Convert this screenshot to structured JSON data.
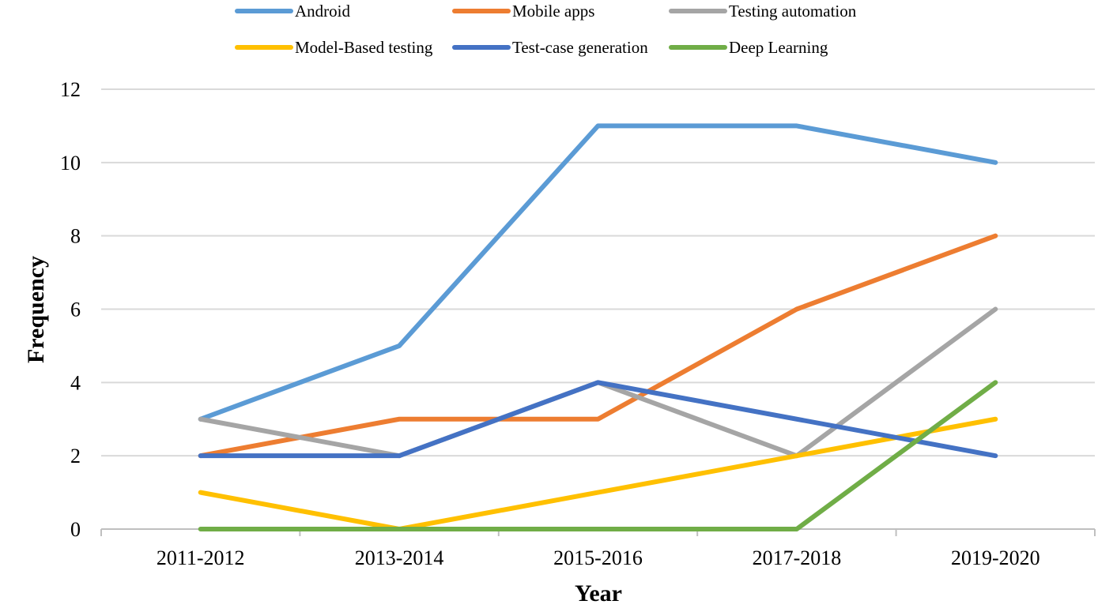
{
  "chart_data": {
    "type": "line",
    "title": "",
    "xlabel": "Year",
    "ylabel": "Frequency",
    "categories": [
      "2011-2012",
      "2013-2014",
      "2015-2016",
      "2017-2018",
      "2019-2020"
    ],
    "ylim": [
      0,
      12
    ],
    "yticks": [
      0,
      2,
      4,
      6,
      8,
      10,
      12
    ],
    "grid": true,
    "legend_position": "top",
    "series": [
      {
        "name": "Android",
        "color": "#5B9BD5",
        "values": [
          3,
          5,
          11,
          11,
          10
        ]
      },
      {
        "name": "Mobile apps",
        "color": "#ED7D31",
        "values": [
          2,
          3,
          3,
          6,
          8
        ]
      },
      {
        "name": "Testing automation",
        "color": "#A5A5A5",
        "values": [
          3,
          2,
          4,
          2,
          6
        ]
      },
      {
        "name": "Model-Based testing",
        "color": "#FFC000",
        "values": [
          1,
          0,
          1,
          2,
          3
        ]
      },
      {
        "name": "Test-case generation",
        "color": "#4472C4",
        "values": [
          2,
          2,
          4,
          3,
          2
        ]
      },
      {
        "name": "Deep Learning",
        "color": "#70AD47",
        "values": [
          0,
          0,
          0,
          0,
          4
        ]
      }
    ]
  }
}
